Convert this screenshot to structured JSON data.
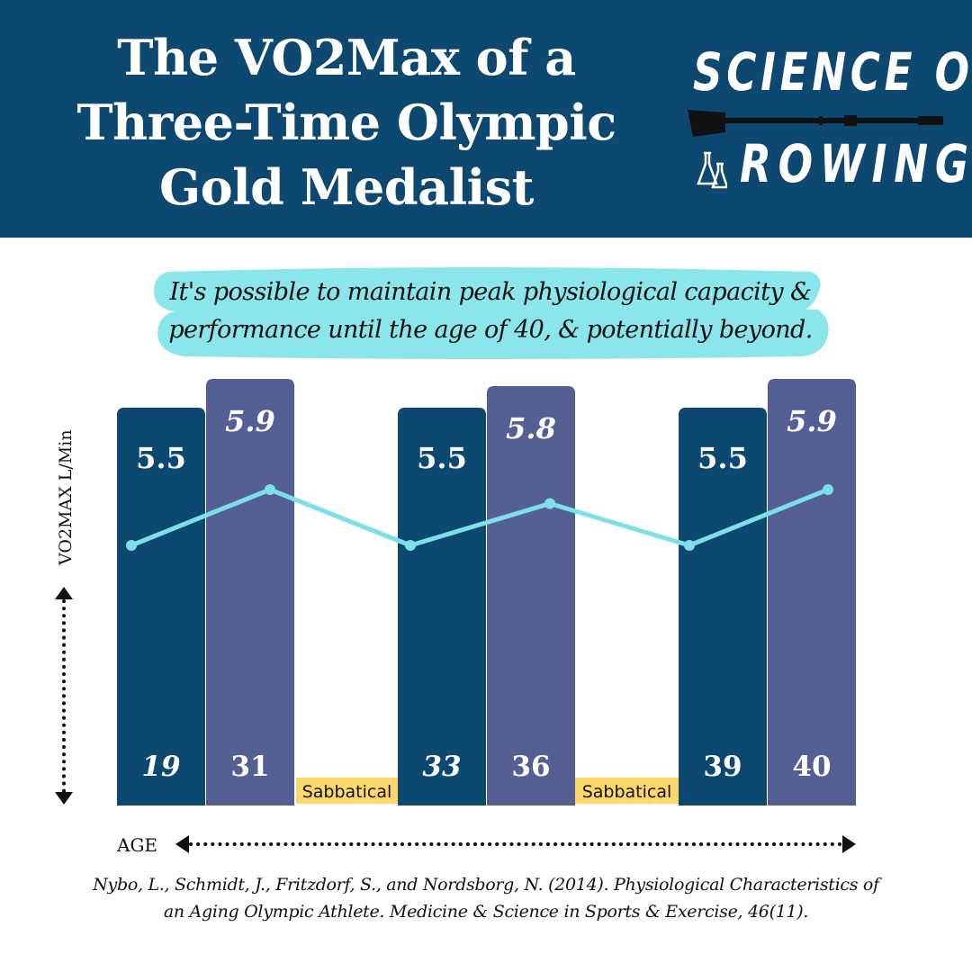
{
  "header": {
    "title_lines": [
      "The VO2Max of a",
      "Three-Time Olympic",
      "Gold Medalist"
    ],
    "logo_top": "SCIENCE OF",
    "logo_bottom": "ROWING"
  },
  "subtitle_lines": [
    "It's possible to maintain peak physiological capacity &",
    "performance until the age of 40, & potentially beyond."
  ],
  "chart_data": {
    "type": "bar",
    "categories": [
      "19",
      "31",
      "33",
      "36",
      "39",
      "40"
    ],
    "values": [
      5.5,
      5.9,
      5.5,
      5.8,
      5.5,
      5.9
    ],
    "value_labels": [
      "5.5",
      "5.9",
      "5.5",
      "5.8",
      "5.5",
      "5.9"
    ],
    "ylabel": "VO2MAX L/Min",
    "xlabel": "AGE",
    "gap_labels": [
      "Sabbatical",
      "Sabbatical"
    ],
    "overlay": "line",
    "grid": false,
    "colors": {
      "bar_dark": "#0c4870",
      "bar_light": "#545f93",
      "line": "#7de0e6",
      "gap_label_bg": "#fcd769"
    }
  },
  "citation_lines": [
    "Nybo, L., Schmidt, J., Fritzdorf, S., and Nordsborg, N. (2014). Physiological Characteristics of",
    "an Aging Olympic Athlete. Medicine & Science in Sports & Exercise, 46(11)."
  ],
  "colors": {
    "header_bg": "#0c4870",
    "highlight": "#8ae6ea"
  }
}
